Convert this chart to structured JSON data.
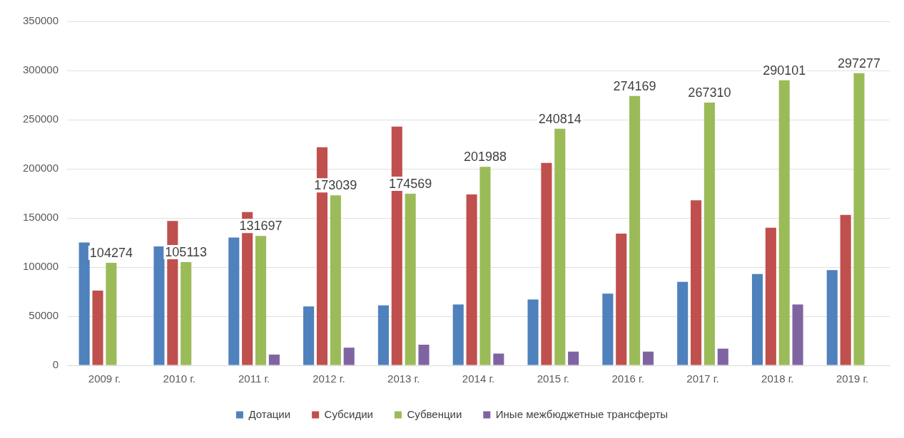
{
  "chart_data": {
    "type": "bar",
    "categories": [
      "2009 г.",
      "2010 г.",
      "2011 г.",
      "2012 г.",
      "2013 г.",
      "2014 г.",
      "2015 г.",
      "2016 г.",
      "2017 г.",
      "2018 г.",
      "2019 г."
    ],
    "series": [
      {
        "name": "Дотации",
        "color": "#4f81bd",
        "values": [
          125000,
          121000,
          130000,
          60000,
          61000,
          62000,
          67000,
          73000,
          85000,
          93000,
          97000
        ]
      },
      {
        "name": "Субсидии",
        "color": "#c0504d",
        "values": [
          76000,
          147000,
          156000,
          222000,
          243000,
          174000,
          206000,
          134000,
          168000,
          140000,
          153000
        ]
      },
      {
        "name": "Субвенции",
        "color": "#9bbb59",
        "values": [
          104274,
          105113,
          131697,
          173039,
          174569,
          201988,
          240814,
          274169,
          267310,
          290101,
          297277
        ],
        "value_labels": [
          "104274",
          "105113",
          "131697",
          "173039",
          "174569",
          "201988",
          "240814",
          "274169",
          "267310",
          "290101",
          "297277"
        ]
      },
      {
        "name": "Иные межбюджетные трансферты",
        "color": "#8064a2",
        "values": [
          null,
          null,
          11000,
          18000,
          21000,
          12000,
          14000,
          14000,
          17000,
          62000,
          null
        ]
      }
    ],
    "ylim": [
      0,
      350000
    ],
    "yticks": [
      0,
      50000,
      100000,
      150000,
      200000,
      250000,
      300000,
      350000
    ],
    "grid": "y",
    "legend": "bottom"
  }
}
